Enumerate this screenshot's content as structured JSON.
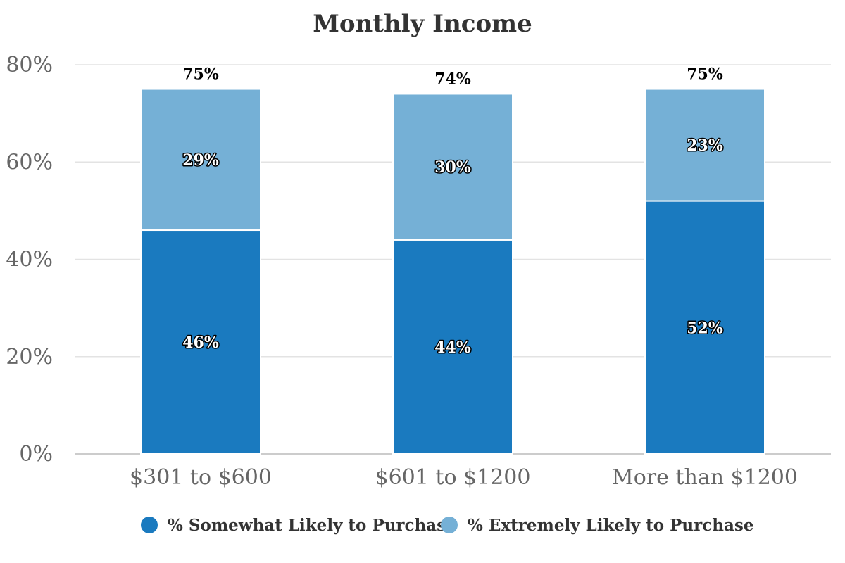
{
  "chart_data": {
    "type": "bar",
    "stacked": true,
    "title": "Monthly Income",
    "xlabel": "",
    "ylabel": "",
    "categories": [
      "$301 to $600",
      "$601 to $1200",
      "More than $1200"
    ],
    "series": [
      {
        "name": "% Somewhat Likely to Purchase",
        "color": "#1a7abf",
        "values": [
          46,
          44,
          52
        ],
        "labels": [
          "46%",
          "44%",
          "52%"
        ]
      },
      {
        "name": "% Extremely Likely to Purchase",
        "color": "#75b0d6",
        "values": [
          29,
          30,
          23
        ],
        "labels": [
          "29%",
          "30%",
          "23%"
        ]
      }
    ],
    "totals": [
      75,
      74,
      75
    ],
    "total_labels": [
      "75%",
      "74%",
      "75%"
    ],
    "ylim": [
      0,
      80
    ],
    "yticks": [
      0,
      20,
      40,
      60,
      80
    ],
    "ytick_labels": [
      "0%",
      "20%",
      "40%",
      "60%",
      "80%"
    ],
    "grid": true,
    "legend_position": "bottom-center"
  }
}
